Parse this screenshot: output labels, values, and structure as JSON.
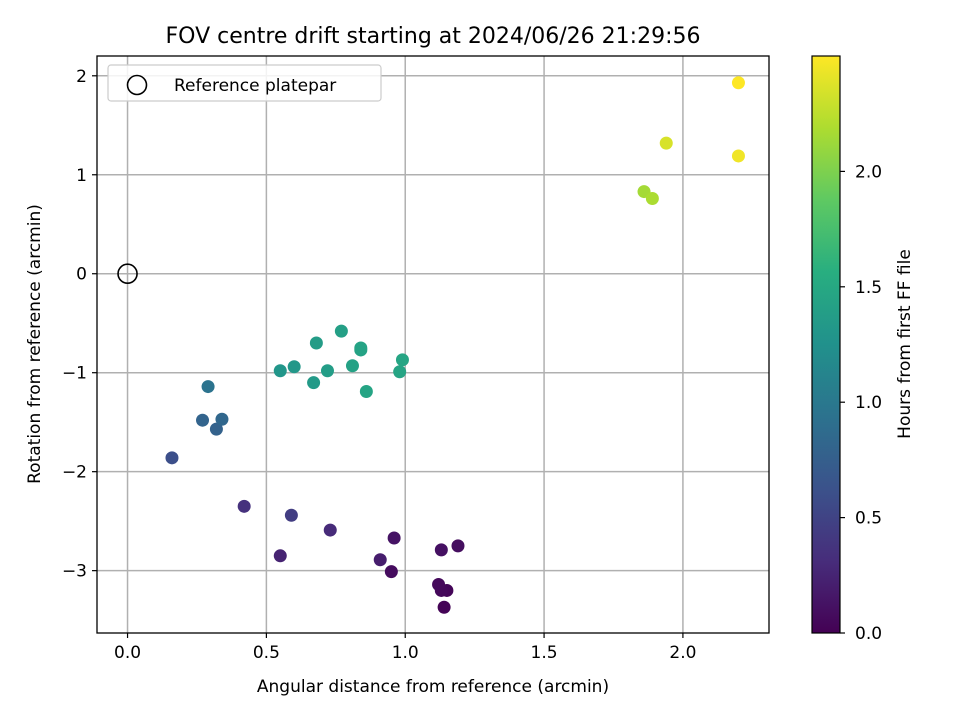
{
  "chart_data": {
    "type": "scatter",
    "title": "FOV centre drift starting at 2024/06/26 21:29:56",
    "xlabel": "Angular distance from reference (arcmin)",
    "ylabel": "Rotation from reference (arcmin)",
    "xlim": [
      -0.11,
      2.31
    ],
    "ylim": [
      -3.63,
      2.2
    ],
    "x_ticks": [
      0.0,
      0.5,
      1.0,
      1.5,
      2.0
    ],
    "x_tick_labels": [
      "0.0",
      "0.5",
      "1.0",
      "1.5",
      "2.0"
    ],
    "y_ticks": [
      -3,
      -2,
      -1,
      0,
      1,
      2
    ],
    "y_tick_labels": [
      "−3",
      "−2",
      "−1",
      "0",
      "1",
      "2"
    ],
    "grid": true,
    "legend": {
      "position": "top-left",
      "entries": [
        {
          "label": "Reference platepar",
          "marker": "open-circle"
        }
      ]
    },
    "reference_point": {
      "x": 0.0,
      "y": 0.0
    },
    "colorbar": {
      "label": "Hours from first FF file",
      "colormap": "viridis",
      "range": [
        0.0,
        2.5
      ],
      "ticks": [
        0.0,
        0.5,
        1.0,
        1.5,
        2.0
      ],
      "tick_labels": [
        "0.0",
        "0.5",
        "1.0",
        "1.5",
        "2.0"
      ]
    },
    "points": [
      {
        "x": 1.14,
        "y": -3.37,
        "c": 0.02
      },
      {
        "x": 1.15,
        "y": -3.2,
        "c": 0.03
      },
      {
        "x": 1.13,
        "y": -3.2,
        "c": 0.05
      },
      {
        "x": 1.12,
        "y": -3.14,
        "c": 0.06
      },
      {
        "x": 0.95,
        "y": -3.01,
        "c": 0.08
      },
      {
        "x": 1.19,
        "y": -2.75,
        "c": 0.09
      },
      {
        "x": 1.13,
        "y": -2.79,
        "c": 0.11
      },
      {
        "x": 0.96,
        "y": -2.67,
        "c": 0.13
      },
      {
        "x": 0.91,
        "y": -2.89,
        "c": 0.2
      },
      {
        "x": 0.55,
        "y": -2.85,
        "c": 0.24
      },
      {
        "x": 0.73,
        "y": -2.59,
        "c": 0.3
      },
      {
        "x": 0.42,
        "y": -2.35,
        "c": 0.35
      },
      {
        "x": 0.59,
        "y": -2.44,
        "c": 0.45
      },
      {
        "x": 0.16,
        "y": -1.86,
        "c": 0.6
      },
      {
        "x": 0.27,
        "y": -1.48,
        "c": 0.8
      },
      {
        "x": 0.32,
        "y": -1.57,
        "c": 0.78
      },
      {
        "x": 0.34,
        "y": -1.47,
        "c": 0.83
      },
      {
        "x": 0.29,
        "y": -1.14,
        "c": 0.95
      },
      {
        "x": 0.55,
        "y": -0.98,
        "c": 1.3
      },
      {
        "x": 0.6,
        "y": -0.94,
        "c": 1.32
      },
      {
        "x": 0.67,
        "y": -1.1,
        "c": 1.35
      },
      {
        "x": 0.68,
        "y": -0.7,
        "c": 1.37
      },
      {
        "x": 0.72,
        "y": -0.98,
        "c": 1.38
      },
      {
        "x": 0.77,
        "y": -0.58,
        "c": 1.4
      },
      {
        "x": 0.81,
        "y": -0.93,
        "c": 1.42
      },
      {
        "x": 0.84,
        "y": -0.77,
        "c": 1.43
      },
      {
        "x": 0.84,
        "y": -0.75,
        "c": 1.44
      },
      {
        "x": 0.86,
        "y": -1.19,
        "c": 1.45
      },
      {
        "x": 0.98,
        "y": -0.99,
        "c": 1.46
      },
      {
        "x": 0.99,
        "y": -0.87,
        "c": 1.47
      },
      {
        "x": 1.86,
        "y": 0.83,
        "c": 2.15
      },
      {
        "x": 1.89,
        "y": 0.76,
        "c": 2.18
      },
      {
        "x": 1.94,
        "y": 1.32,
        "c": 2.35
      },
      {
        "x": 2.2,
        "y": 1.19,
        "c": 2.45
      },
      {
        "x": 2.2,
        "y": 1.93,
        "c": 2.5
      }
    ]
  }
}
